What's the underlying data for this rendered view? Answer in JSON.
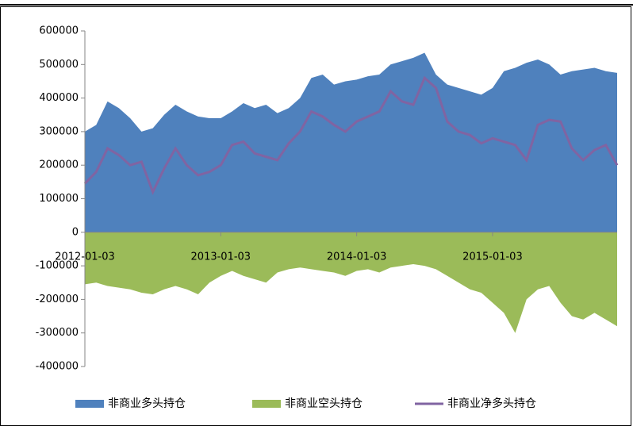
{
  "chart_data": {
    "type": "area-line",
    "categories": [
      "2012-01-03",
      null,
      null,
      null,
      null,
      null,
      null,
      null,
      null,
      null,
      null,
      null,
      "2013-01-03",
      null,
      null,
      null,
      null,
      null,
      null,
      null,
      null,
      null,
      null,
      null,
      "2014-01-03",
      null,
      null,
      null,
      null,
      null,
      null,
      null,
      null,
      null,
      null,
      null,
      "2015-01-03",
      null,
      null,
      null,
      null,
      null,
      null,
      null,
      null,
      null,
      null,
      null
    ],
    "series": [
      {
        "name": "非商业多头持仓",
        "color": "#4f81bd",
        "kind": "area",
        "values": [
          300000,
          320000,
          390000,
          370000,
          340000,
          300000,
          310000,
          350000,
          380000,
          360000,
          345000,
          340000,
          340000,
          360000,
          385000,
          370000,
          380000,
          355000,
          370000,
          400000,
          460000,
          470000,
          440000,
          450000,
          455000,
          465000,
          470000,
          500000,
          510000,
          520000,
          535000,
          470000,
          440000,
          430000,
          420000,
          410000,
          430000,
          480000,
          490000,
          505000,
          515000,
          500000,
          470000,
          480000,
          485000,
          490000,
          480000,
          475000
        ]
      },
      {
        "name": "非商业空头持仓",
        "color": "#9bbb59",
        "kind": "area",
        "values": [
          -155000,
          -150000,
          -160000,
          -165000,
          -170000,
          -180000,
          -185000,
          -170000,
          -160000,
          -170000,
          -185000,
          -150000,
          -130000,
          -115000,
          -130000,
          -140000,
          -150000,
          -120000,
          -110000,
          -105000,
          -110000,
          -115000,
          -120000,
          -130000,
          -115000,
          -110000,
          -120000,
          -105000,
          -100000,
          -95000,
          -100000,
          -110000,
          -130000,
          -150000,
          -170000,
          -180000,
          -210000,
          -240000,
          -300000,
          -200000,
          -170000,
          -160000,
          -210000,
          -250000,
          -260000,
          -240000,
          -260000,
          -280000
        ]
      },
      {
        "name": "非商业净多头持仓",
        "color": "#8064a2",
        "kind": "line",
        "values": [
          145000,
          180000,
          250000,
          230000,
          200000,
          210000,
          120000,
          190000,
          250000,
          200000,
          170000,
          180000,
          200000,
          260000,
          270000,
          235000,
          225000,
          215000,
          265000,
          300000,
          360000,
          345000,
          320000,
          300000,
          330000,
          345000,
          360000,
          420000,
          390000,
          380000,
          460000,
          430000,
          330000,
          300000,
          290000,
          265000,
          280000,
          270000,
          260000,
          215000,
          320000,
          335000,
          330000,
          250000,
          215000,
          245000,
          260000,
          200000
        ]
      }
    ],
    "ylim": [
      -400000,
      600000
    ],
    "yticks": [
      -400000,
      -300000,
      -200000,
      -100000,
      0,
      100000,
      200000,
      300000,
      400000,
      500000,
      600000
    ],
    "legend": "bottom"
  }
}
